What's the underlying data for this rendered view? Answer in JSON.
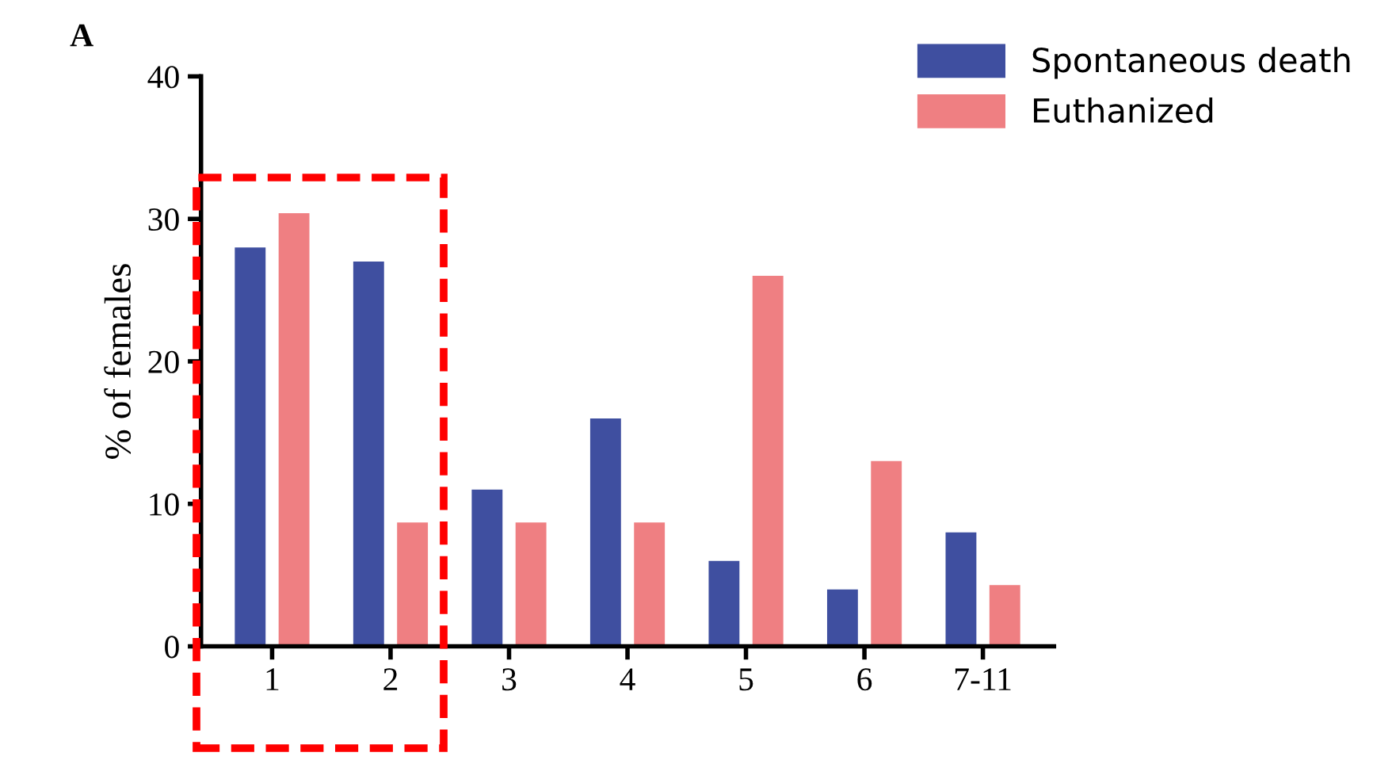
{
  "chart_data": {
    "type": "bar",
    "ylabel": "% of females",
    "categories": [
      "1",
      "2",
      "3",
      "4",
      "5",
      "6",
      "7-11"
    ],
    "series": [
      {
        "name": "Spontaneous death",
        "color": "#3f4fa0",
        "values": [
          28,
          27,
          11,
          16,
          6,
          4,
          8
        ]
      },
      {
        "name": "Euthanized",
        "color": "#ef7f82",
        "values": [
          30.4,
          8.7,
          8.7,
          8.7,
          26,
          13,
          4.3
        ]
      }
    ],
    "ylim": [
      0,
      40
    ],
    "yticks": [
      0,
      10,
      20,
      30,
      40
    ],
    "grid": false,
    "legend": "top right",
    "annotations": [
      "A"
    ]
  }
}
